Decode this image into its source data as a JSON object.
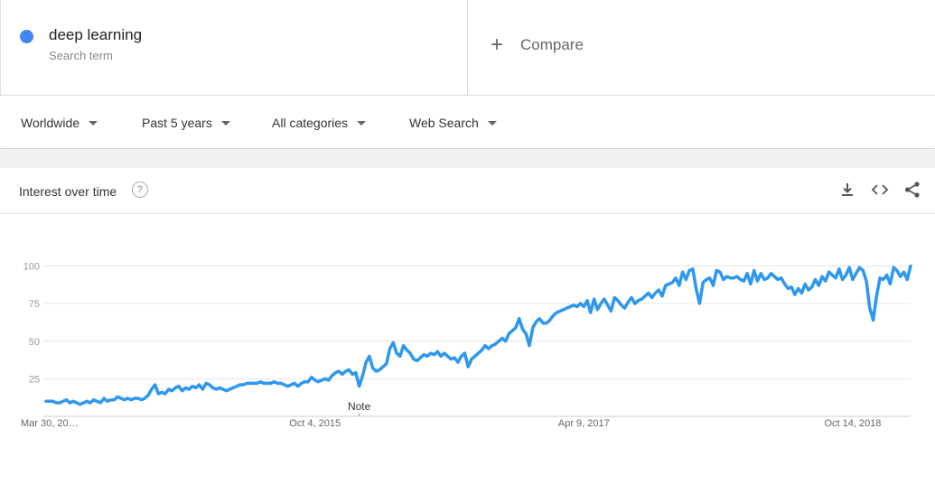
{
  "search_term": {
    "name": "deep learning",
    "subtitle": "Search term",
    "color": "#4285f4"
  },
  "compare": {
    "label": "Compare"
  },
  "filters": [
    {
      "label": "Worldwide"
    },
    {
      "label": "Past 5 years"
    },
    {
      "label": "All categories"
    },
    {
      "label": "Web Search"
    }
  ],
  "card": {
    "title": "Interest over time",
    "help_icon": "?",
    "actions": [
      "download-icon",
      "embed-icon",
      "share-icon"
    ]
  },
  "chart_data": {
    "type": "line",
    "series": [
      {
        "color": "#2e97f0",
        "values": [
          10,
          10,
          10,
          9,
          9,
          10,
          11,
          9,
          10,
          9,
          8,
          9,
          10,
          9,
          11,
          10,
          9,
          12,
          10,
          11,
          11,
          13,
          12,
          11,
          12,
          11,
          12,
          12,
          11,
          12,
          14,
          18,
          21,
          15,
          16,
          15,
          18,
          17,
          19,
          20,
          17,
          19,
          18,
          20,
          19,
          21,
          18,
          22,
          21,
          19,
          18,
          19,
          18,
          17,
          18,
          19,
          20,
          21,
          21,
          22,
          22,
          22,
          22,
          23,
          22,
          22,
          22,
          23,
          22,
          22,
          21,
          20,
          21,
          22,
          20,
          22,
          23,
          23,
          26,
          24,
          23,
          24,
          25,
          24,
          27,
          29,
          30,
          28,
          30,
          31,
          28,
          29,
          20,
          27,
          36,
          40,
          32,
          30,
          31,
          33,
          35,
          45,
          49,
          42,
          40,
          47,
          44,
          42,
          38,
          37,
          39,
          41,
          40,
          42,
          41,
          43,
          40,
          42,
          40,
          38,
          39,
          36,
          40,
          42,
          33,
          38,
          40,
          42,
          44,
          47,
          45,
          47,
          48,
          50,
          52,
          50,
          55,
          57,
          59,
          65,
          58,
          55,
          47,
          59,
          63,
          65,
          62,
          62,
          64,
          67,
          69,
          70,
          71,
          72,
          73,
          74,
          73,
          75,
          73,
          77,
          69,
          78,
          71,
          75,
          78,
          74,
          70,
          79,
          77,
          74,
          72,
          76,
          79,
          75,
          77,
          78,
          80,
          82,
          79,
          82,
          84,
          80,
          87,
          88,
          89,
          92,
          87,
          96,
          91,
          97,
          98,
          85,
          75,
          89,
          91,
          92,
          87,
          97,
          96,
          91,
          93,
          92,
          92,
          93,
          91,
          90,
          95,
          88,
          97,
          90,
          95,
          91,
          92,
          95,
          93,
          91,
          92,
          88,
          85,
          86,
          81,
          85,
          82,
          88,
          84,
          86,
          91,
          87,
          93,
          90,
          96,
          94,
          92,
          98,
          91,
          94,
          99,
          91,
          95,
          99,
          97,
          90,
          72,
          64,
          80,
          92,
          91,
          94,
          88,
          99,
          97,
          93,
          96,
          91,
          100
        ]
      }
    ],
    "ylim": [
      0,
      100
    ],
    "yticks": [
      25,
      50,
      75,
      100
    ],
    "x_ticks": [
      {
        "label": "Mar 30, 20…",
        "index": 0
      },
      {
        "label": "Oct 4, 2015",
        "index": 79
      },
      {
        "label": "Apr 9, 2017",
        "index": 158
      },
      {
        "label": "Oct 14, 2018",
        "index": 237
      }
    ],
    "annotations": [
      {
        "label": "Note",
        "index": 92
      }
    ],
    "grid": true,
    "legend": "none"
  }
}
